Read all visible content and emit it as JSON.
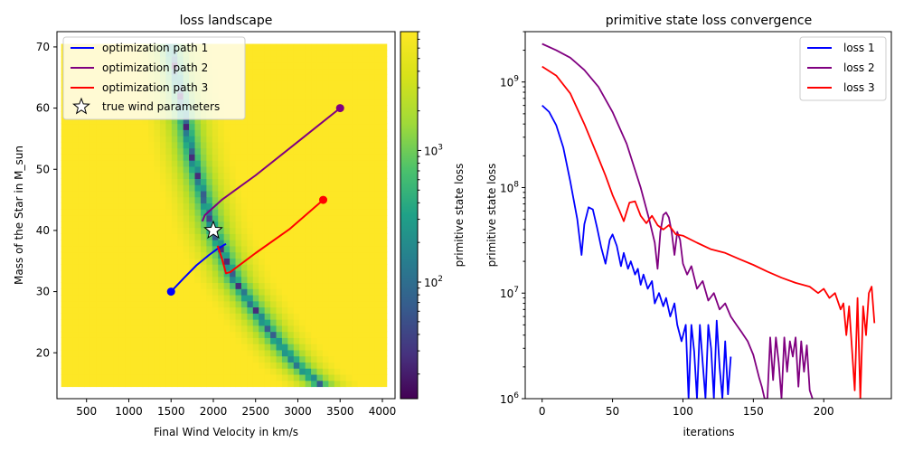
{
  "chart_data": [
    {
      "type": "heatmap",
      "title": "loss landscape",
      "xlabel": "Final Wind Velocity in km/s",
      "ylabel": "Mass of the Star in M_sun",
      "xlim": [
        150,
        4150
      ],
      "ylim": [
        12.5,
        72.5
      ],
      "xticks": [
        500,
        1000,
        1500,
        2000,
        2500,
        3000,
        3500,
        4000
      ],
      "yticks": [
        20,
        30,
        40,
        50,
        60,
        70
      ],
      "grid": false,
      "field_extent": {
        "x": [
          200,
          4050
        ],
        "y": [
          14.5,
          70.5
        ]
      },
      "valley_curve": {
        "x": [
          1500,
          1750,
          2000,
          2250,
          2500,
          2750,
          3000,
          3250
        ],
        "y": [
          70,
          52,
          40,
          32,
          27,
          22,
          18,
          15
        ]
      },
      "colorbar": {
        "label": "primitive state loss",
        "scale": "log",
        "range": [
          13,
          8000
        ],
        "ticks": [
          100,
          1000
        ],
        "tick_labels": [
          "10^2",
          "10^3"
        ]
      },
      "legend_position": "upper-left",
      "series": [
        {
          "name": "optimization path 1",
          "color": "#0000ff",
          "x": [
            1500,
            1650,
            1800,
            1950,
            2050,
            2150
          ],
          "y": [
            30,
            32.2,
            34.3,
            36.0,
            37.0,
            37.8
          ],
          "start": [
            1500,
            30
          ]
        },
        {
          "name": "optimization path 2",
          "color": "#800080",
          "x": [
            3500,
            3000,
            2500,
            2100,
            1900,
            1870
          ],
          "y": [
            60,
            54.5,
            49,
            45,
            42.5,
            41.5
          ],
          "start": [
            3500,
            60
          ]
        },
        {
          "name": "optimization path 3",
          "color": "#ff0000",
          "x": [
            3300,
            2900,
            2500,
            2200,
            2150,
            2100,
            2050
          ],
          "y": [
            45,
            40.2,
            36.3,
            33.2,
            33.0,
            35.5,
            37.5
          ],
          "start": [
            3300,
            45
          ]
        }
      ],
      "true_wind_parameters": {
        "name": "true wind parameters",
        "x": 2000,
        "y": 40
      }
    },
    {
      "type": "line",
      "title": "primitive state loss convergence",
      "xlabel": "iterations",
      "ylabel": "primitive state loss",
      "xlim": [
        -12,
        248
      ],
      "ylim": [
        1000000,
        3000000000
      ],
      "yscale": "log",
      "xticks": [
        0,
        50,
        100,
        150,
        200
      ],
      "yticks": [
        1000000,
        10000000,
        100000000,
        1000000000
      ],
      "ytick_labels": [
        "10^6",
        "10^7",
        "10^8",
        "10^9"
      ],
      "grid": false,
      "legend_position": "upper-right",
      "series": [
        {
          "name": "loss 1",
          "color": "#0000ff",
          "x": [
            0,
            5,
            10,
            15,
            20,
            25,
            28,
            30,
            33,
            36,
            39,
            42,
            45,
            48,
            50,
            53,
            56,
            58,
            61,
            63,
            66,
            68,
            70,
            72,
            75,
            78,
            80,
            83,
            86,
            88,
            91,
            94,
            96,
            99,
            102,
            104,
            106,
            108,
            110,
            112,
            114,
            116,
            118,
            120,
            122,
            124,
            126,
            128,
            130,
            132,
            134
          ],
          "y": [
            600000000,
            520000000,
            390000000,
            240000000,
            115000000,
            50000000,
            23000000,
            45000000,
            65000000,
            62000000,
            42000000,
            27000000,
            19000000,
            32000000,
            36000000,
            28000000,
            18000000,
            24000000,
            17000000,
            20000000,
            15000000,
            17000000,
            12000000,
            15000000,
            11000000,
            13000000,
            8000000,
            10000000,
            7500000,
            9000000,
            6000000,
            8000000,
            5000000,
            3500000,
            5000000,
            1000000,
            5000000,
            2800000,
            1000000,
            5000000,
            2200000,
            1000000,
            5000000,
            3000000,
            1000000,
            5500000,
            2000000,
            1000000,
            3500000,
            1100000,
            2500000
          ]
        },
        {
          "name": "loss 2",
          "color": "#800080",
          "x": [
            0,
            10,
            20,
            30,
            40,
            50,
            60,
            70,
            76,
            80,
            82,
            84,
            86,
            88,
            90,
            92,
            94,
            96,
            98,
            100,
            103,
            106,
            110,
            114,
            118,
            122,
            126,
            130,
            134,
            138,
            142,
            146,
            150,
            154,
            156,
            158,
            160,
            162,
            164,
            166,
            168,
            170,
            172,
            174,
            176,
            178,
            180,
            182,
            184,
            186,
            188,
            190,
            192
          ],
          "y": [
            2300000000,
            2000000000,
            1700000000,
            1300000000,
            900000000,
            520000000,
            260000000,
            100000000,
            50000000,
            30000000,
            17000000,
            38000000,
            55000000,
            58000000,
            52000000,
            38000000,
            23000000,
            38000000,
            32000000,
            19000000,
            15000000,
            18000000,
            11000000,
            13000000,
            8500000,
            10000000,
            7000000,
            8000000,
            6000000,
            5000000,
            4200000,
            3500000,
            2600000,
            1600000,
            1300000,
            1000000,
            1000000,
            3800000,
            1500000,
            3800000,
            2200000,
            1000000,
            3800000,
            1800000,
            3500000,
            2500000,
            3800000,
            1300000,
            3500000,
            1800000,
            3200000,
            1200000,
            1000000
          ]
        },
        {
          "name": "loss 3",
          "color": "#ff0000",
          "x": [
            0,
            10,
            20,
            30,
            40,
            45,
            50,
            55,
            58,
            62,
            66,
            70,
            74,
            78,
            82,
            86,
            90,
            95,
            100,
            110,
            120,
            130,
            140,
            150,
            160,
            170,
            180,
            190,
            196,
            200,
            204,
            208,
            212,
            214,
            216,
            218,
            220,
            222,
            224,
            226,
            228,
            230,
            232,
            234,
            236
          ],
          "y": [
            1400000000,
            1150000000,
            780000000,
            400000000,
            190000000,
            130000000,
            85000000,
            60000000,
            48000000,
            72000000,
            74000000,
            54000000,
            46000000,
            54000000,
            44000000,
            40000000,
            44000000,
            36000000,
            35000000,
            30000000,
            26000000,
            24000000,
            21000000,
            18500000,
            16000000,
            14000000,
            12500000,
            11500000,
            10000000,
            11000000,
            9000000,
            10000000,
            7000000,
            8000000,
            4000000,
            7500000,
            3000000,
            1200000,
            9000000,
            1000000,
            7500000,
            4000000,
            10000000,
            11500000,
            5200000
          ]
        }
      ]
    }
  ]
}
